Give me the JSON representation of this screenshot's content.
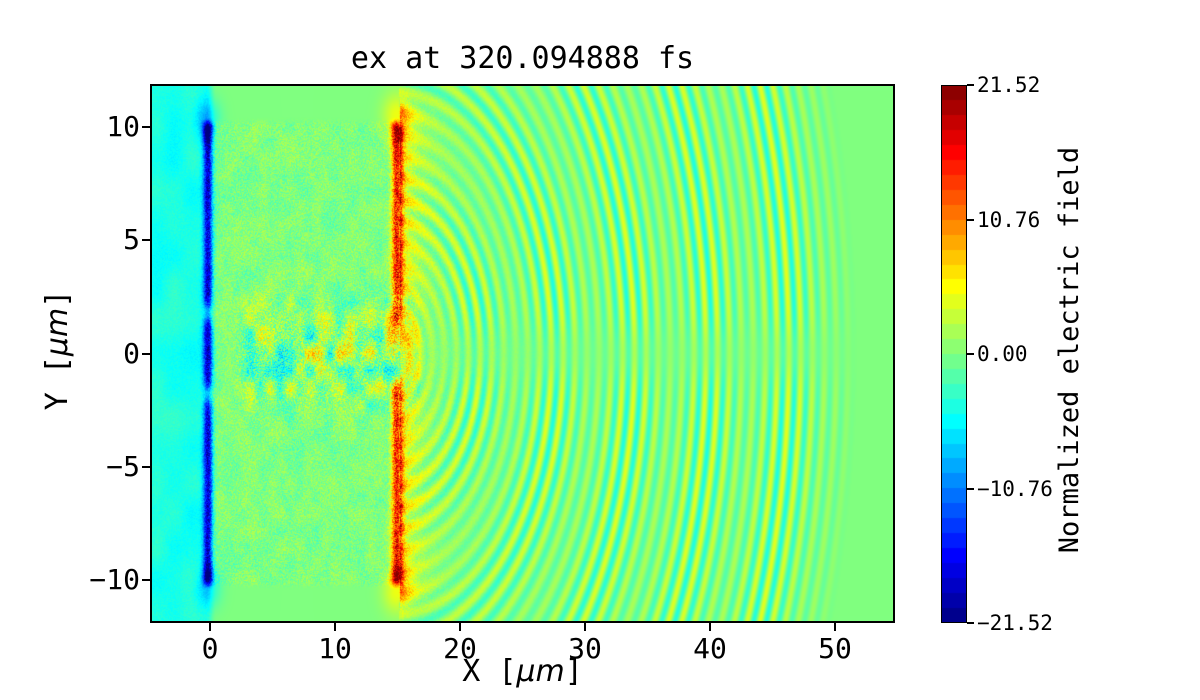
{
  "chart_data": {
    "type": "heatmap",
    "title": "ex at 320.094888 fs",
    "xlabel": {
      "pre": "X [",
      "mu": "μm",
      "post": "]"
    },
    "ylabel": {
      "pre": "Y [",
      "mu": "μm",
      "post": "]"
    },
    "colorbar_label": "Normalized electric field",
    "colormap": "jet",
    "colorbar_levels": 36,
    "xlim": [
      -4.8,
      54.8
    ],
    "ylim": [
      -11.9,
      11.9
    ],
    "clim": [
      -21.52,
      21.52
    ],
    "xticks": {
      "values": [
        0,
        10,
        20,
        30,
        40,
        50
      ],
      "labels": [
        "0",
        "10",
        "20",
        "30",
        "40",
        "50"
      ]
    },
    "yticks": {
      "values": [
        10,
        5,
        0,
        -5,
        -10
      ],
      "labels": [
        "10",
        "5",
        "0",
        "−5",
        "−10"
      ]
    },
    "colorbar_ticks": {
      "values": [
        21.52,
        10.76,
        0,
        -10.76,
        -21.52
      ],
      "labels": [
        "21.52",
        "10.76",
        "0.00",
        "−10.76",
        "−21.52"
      ]
    },
    "grid": false,
    "field_model": {
      "description": "PIC-simulation snapshot of normalized Ex: laser interacting with a plasma slab (x 0..15 um, y -10..10 um). Negative (blue) sheath field on the front surface at x=0, positive (red) sheath field on the rear surface at x=15 with dark tips at y=+-10, speckle noise inside the slab, a turbulent channel along y=0, and transmitted quasi-circular wavefronts radiating to the right and fading out near x=52.",
      "background_value": 0,
      "vacuum_left": {
        "x_max": 0.0,
        "value": -4.3,
        "noise_amplitude": 0.7,
        "mottle_amplitude": 1.2
      },
      "plasma_slab": {
        "x_range": [
          0,
          15
        ],
        "half_height_y": 10.3,
        "noise_amplitude": 2.1,
        "mottle_amplitude": 1.0
      },
      "front_surface_sheath": {
        "x_center": -0.15,
        "sigma_x": 0.27,
        "half_length_y": 10.15,
        "peak_value": -14.5,
        "noise_amplitude": 3.0,
        "notch_abs_y": 1.8,
        "tip_abs_y": 9.8,
        "tip_boost": 0.35
      },
      "rear_surface_sheath": {
        "x_center": 14.95,
        "sigma_x": 0.3,
        "half_length_y": 10.15,
        "peak_value": 15.5,
        "noise_amplitude": 3.5,
        "gap_half_width_y": 1.2,
        "tip_abs_y": 9.8,
        "tip_boost": 0.3
      },
      "rear_glow": {
        "x_start": 15.2,
        "decay_length": 1.5,
        "value": 7.0
      },
      "channel_turbulence": {
        "x_range": [
          2.0,
          16.8
        ],
        "y_sigma": 1.6,
        "amplitude": 7.5,
        "blob_scale_um": 0.8
      },
      "transmitted_wave": {
        "center_x": 14.8,
        "center_y": 0,
        "wavelength_um": 0.95,
        "amplitude": 4.3,
        "r_min": 0.8,
        "r_max": 37.3,
        "fade_out_um": 3.5,
        "beat_period_um": 6.2,
        "axis_null_sigma_y": 0.9
      }
    }
  }
}
